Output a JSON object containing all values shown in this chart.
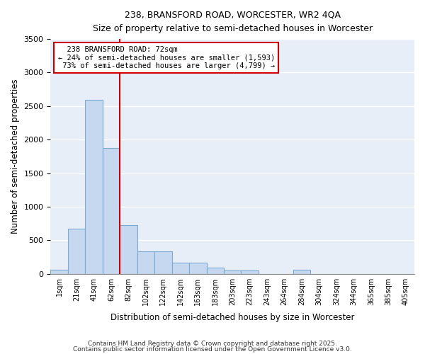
{
  "title1": "238, BRANSFORD ROAD, WORCESTER, WR2 4QA",
  "title2": "Size of property relative to semi-detached houses in Worcester",
  "xlabel": "Distribution of semi-detached houses by size in Worcester",
  "ylabel": "Number of semi-detached properties",
  "bar_color": "#c5d8f0",
  "bar_edge_color": "#7aaad0",
  "background_color": "#e8eef8",
  "grid_color": "#ffffff",
  "annotation_line_color": "#cc0000",
  "bin_labels": [
    "1sqm",
    "21sqm",
    "41sqm",
    "62sqm",
    "82sqm",
    "102sqm",
    "122sqm",
    "142sqm",
    "163sqm",
    "183sqm",
    "203sqm",
    "223sqm",
    "243sqm",
    "264sqm",
    "284sqm",
    "304sqm",
    "324sqm",
    "344sqm",
    "365sqm",
    "385sqm",
    "405sqm"
  ],
  "bin_values": [
    60,
    670,
    2590,
    1880,
    730,
    335,
    335,
    160,
    160,
    90,
    50,
    50,
    0,
    0,
    60,
    0,
    0,
    0,
    0,
    0,
    0
  ],
  "property_size_label": "82sqm",
  "property_bin_index": 4,
  "property_label": "238 BRANSFORD ROAD: 72sqm",
  "pct_smaller": 24,
  "count_smaller": 1593,
  "pct_larger": 73,
  "count_larger": 4799,
  "ylim": [
    0,
    3500
  ],
  "yticks": [
    0,
    500,
    1000,
    1500,
    2000,
    2500,
    3000,
    3500
  ],
  "annotation_box_color": "#ffffff",
  "annotation_box_edge": "#cc0000",
  "footer1": "Contains HM Land Registry data © Crown copyright and database right 2025.",
  "footer2": "Contains public sector information licensed under the Open Government Licence v3.0."
}
